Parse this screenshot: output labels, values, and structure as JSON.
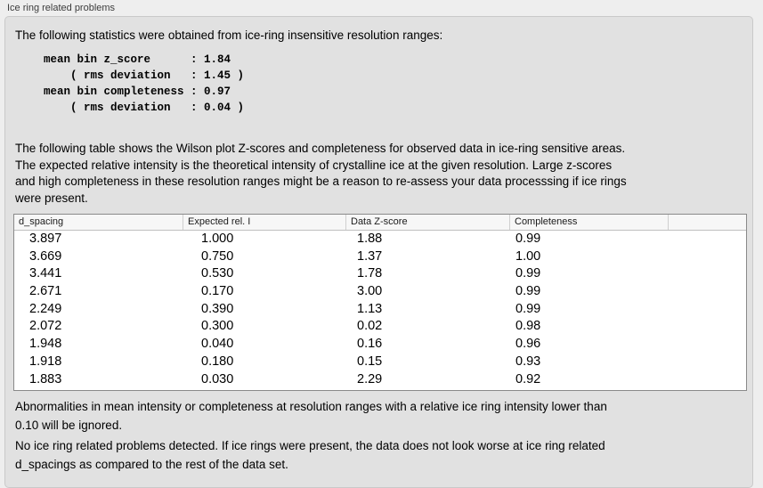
{
  "panel": {
    "title": "Ice ring related problems"
  },
  "stats": {
    "intro": "The following statistics were obtained from ice-ring insensitive resolution ranges:",
    "lines": [
      "mean bin z_score      : 1.84",
      "    ( rms deviation   : 1.45 )",
      "mean bin completeness : 0.97",
      "    ( rms deviation   : 0.04 )"
    ]
  },
  "description": "The following table shows the Wilson plot Z-scores and completeness for observed data in ice-ring sensitive areas.\nThe expected relative intensity is the theoretical intensity of crystalline ice at the given resolution. Large z-scores\nand high completeness in these resolution ranges might be a reason to re-assess your data processsing if ice rings\nwere present.",
  "table": {
    "columns": [
      "d_spacing",
      "Expected rel. I",
      "Data Z-score",
      "Completeness",
      ""
    ],
    "rows": [
      [
        "3.897",
        "1.000",
        "1.88",
        "0.99"
      ],
      [
        "3.669",
        "0.750",
        "1.37",
        "1.00"
      ],
      [
        "3.441",
        "0.530",
        "1.78",
        "0.99"
      ],
      [
        "2.671",
        "0.170",
        "3.00",
        "0.99"
      ],
      [
        "2.249",
        "0.390",
        "1.13",
        "0.99"
      ],
      [
        "2.072",
        "0.300",
        "0.02",
        "0.98"
      ],
      [
        "1.948",
        "0.040",
        "0.16",
        "0.96"
      ],
      [
        "1.918",
        "0.180",
        "0.15",
        "0.93"
      ],
      [
        "1.883",
        "0.030",
        "2.29",
        "0.92"
      ]
    ]
  },
  "notes": {
    "ignore": "Abnormalities in mean intensity or completeness at resolution ranges with a relative ice ring intensity lower than\n0.10 will be ignored.",
    "conclusion": "No ice ring related problems detected. If ice rings were present, the data does not look worse at ice ring related\nd_spacings as compared to the rest of the data set."
  },
  "colors": {
    "page_background": "#eeeeee",
    "box_background": "#e1e1e1",
    "table_header_background": "#f7f7f7",
    "table_border": "#8a8a8a"
  }
}
